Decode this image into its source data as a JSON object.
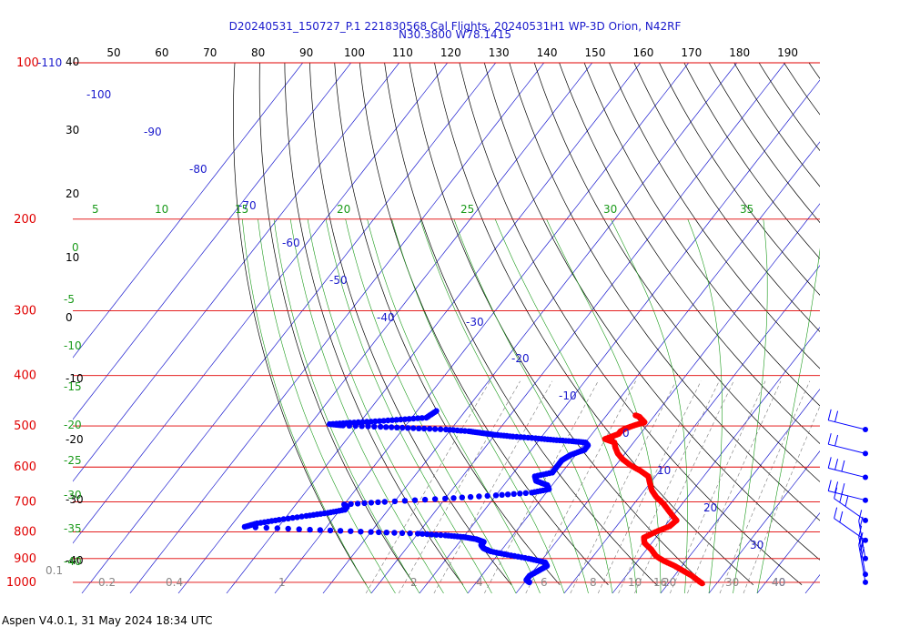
{
  "header": {
    "title_line1": "D20240531_150727_P.1 221830568 Cal Flights, 20240531H1 WP-3D Orion, N42RF",
    "title_line2": "N30.3800 W78.1415"
  },
  "footer": {
    "software": "Aspen V4.0.1, 31 May 2024  18:34 UTC"
  },
  "chart_data": {
    "type": "scatter",
    "title": "D20240531_150727_P.1 221830568 Cal Flights, 20240531H1 WP-3D Orion, N42RF",
    "subtitle": "N30.3800 W78.1415",
    "xlabel": "",
    "ylabel": "",
    "pressure_axis": {
      "label_text": [
        "100-110",
        "200",
        "300",
        "400",
        "500",
        "600",
        "700",
        "800",
        "900",
        "1000"
      ],
      "ticks": [
        100,
        200,
        300,
        400,
        500,
        600,
        700,
        800,
        900,
        1000
      ],
      "scale": "log",
      "range": [
        100,
        1000
      ]
    },
    "top_axis": {
      "ticks": [
        50,
        60,
        70,
        80,
        90,
        100,
        110,
        120,
        130,
        140,
        150,
        160,
        170,
        180,
        190
      ]
    },
    "left_temperature_ticks": [
      "40",
      "30",
      "20",
      "10",
      "0",
      "-10",
      "-20",
      "-30",
      "-40"
    ],
    "isotherm_labels": [
      "-100",
      "-90",
      "-80",
      "-70",
      "-60",
      "-50",
      "-40",
      "-30",
      "-20",
      "-10",
      "0",
      "10",
      "20",
      "30",
      "40"
    ],
    "mixing_ratio_labels": [
      "5",
      "10",
      "15",
      "20",
      "25",
      "30",
      "35"
    ],
    "dry_adiabat_labels": [
      "0",
      "-5",
      "-10",
      "-15",
      "-20",
      "-25",
      "-30",
      "-35",
      "-40"
    ],
    "bottom_axis_labels": [
      "0.1",
      "0.2",
      "0.4",
      "1",
      "2",
      "4",
      "6",
      "8",
      "10",
      "16",
      "20",
      "30",
      "40"
    ],
    "series": [
      {
        "color": "#ff0000",
        "points": [
          {
            "p": 477,
            "t": -14
          },
          {
            "p": 480,
            "t": -13
          },
          {
            "p": 486,
            "t": -12
          },
          {
            "p": 492,
            "t": -11
          },
          {
            "p": 498,
            "t": -12.5
          },
          {
            "p": 506,
            "t": -14
          },
          {
            "p": 512,
            "t": -14.5
          },
          {
            "p": 518,
            "t": -14.5
          },
          {
            "p": 524,
            "t": -15.5
          },
          {
            "p": 530,
            "t": -16.5
          },
          {
            "p": 538,
            "t": -14
          },
          {
            "p": 550,
            "t": -13
          },
          {
            "p": 565,
            "t": -11.5
          },
          {
            "p": 580,
            "t": -9.5
          },
          {
            "p": 595,
            "t": -7
          },
          {
            "p": 610,
            "t": -4
          },
          {
            "p": 625,
            "t": -1.5
          },
          {
            "p": 645,
            "t": 0
          },
          {
            "p": 665,
            "t": 1.5
          },
          {
            "p": 685,
            "t": 3.5
          },
          {
            "p": 705,
            "t": 6
          },
          {
            "p": 725,
            "t": 8
          },
          {
            "p": 740,
            "t": 9.5
          },
          {
            "p": 760,
            "t": 11.5
          },
          {
            "p": 780,
            "t": 11
          },
          {
            "p": 800,
            "t": 9
          },
          {
            "p": 820,
            "t": 7.5
          },
          {
            "p": 840,
            "t": 8.5
          },
          {
            "p": 865,
            "t": 11
          },
          {
            "p": 890,
            "t": 13
          },
          {
            "p": 910,
            "t": 15.5
          },
          {
            "p": 930,
            "t": 18.5
          },
          {
            "p": 950,
            "t": 21
          },
          {
            "p": 970,
            "t": 23.5
          },
          {
            "p": 990,
            "t": 25.5
          },
          {
            "p": 1005,
            "t": 27
          }
        ]
      },
      {
        "color": "#0000ff",
        "points": [
          {
            "p": 468,
            "t": -56
          },
          {
            "p": 482,
            "t": -57
          },
          {
            "p": 486,
            "t": -62
          },
          {
            "p": 490,
            "t": -67
          },
          {
            "p": 493,
            "t": -72
          },
          {
            "p": 496,
            "t": -76
          },
          {
            "p": 499,
            "t": -73
          },
          {
            "p": 502,
            "t": -65
          },
          {
            "p": 505,
            "t": -58
          },
          {
            "p": 508,
            "t": -51
          },
          {
            "p": 512,
            "t": -46
          },
          {
            "p": 516,
            "t": -43
          },
          {
            "p": 520,
            "t": -40
          },
          {
            "p": 524,
            "t": -36
          },
          {
            "p": 528,
            "t": -31
          },
          {
            "p": 532,
            "t": -27
          },
          {
            "p": 535,
            "t": -23
          },
          {
            "p": 538,
            "t": -20
          },
          {
            "p": 545,
            "t": -19
          },
          {
            "p": 556,
            "t": -19
          },
          {
            "p": 568,
            "t": -21
          },
          {
            "p": 582,
            "t": -22
          },
          {
            "p": 600,
            "t": -22
          },
          {
            "p": 615,
            "t": -22
          },
          {
            "p": 625,
            "t": -25
          },
          {
            "p": 638,
            "t": -24
          },
          {
            "p": 650,
            "t": -21
          },
          {
            "p": 662,
            "t": -20
          },
          {
            "p": 672,
            "t": -23
          },
          {
            "p": 680,
            "t": -30
          },
          {
            "p": 690,
            "t": -40
          },
          {
            "p": 700,
            "t": -52
          },
          {
            "p": 708,
            "t": -60
          },
          {
            "p": 716,
            "t": -59
          },
          {
            "p": 725,
            "t": -59
          },
          {
            "p": 735,
            "t": -62
          },
          {
            "p": 745,
            "t": -66
          },
          {
            "p": 758,
            "t": -71
          },
          {
            "p": 770,
            "t": -75
          },
          {
            "p": 782,
            "t": -77
          },
          {
            "p": 792,
            "t": -63
          },
          {
            "p": 800,
            "t": -50
          },
          {
            "p": 806,
            "t": -40
          },
          {
            "p": 812,
            "t": -34
          },
          {
            "p": 818,
            "t": -30
          },
          {
            "p": 826,
            "t": -27
          },
          {
            "p": 836,
            "t": -25
          },
          {
            "p": 848,
            "t": -25
          },
          {
            "p": 860,
            "t": -24
          },
          {
            "p": 872,
            "t": -22
          },
          {
            "p": 885,
            "t": -18
          },
          {
            "p": 900,
            "t": -13
          },
          {
            "p": 915,
            "t": -9
          },
          {
            "p": 930,
            "t": -8
          },
          {
            "p": 950,
            "t": -9
          },
          {
            "p": 970,
            "t": -10
          },
          {
            "p": 990,
            "t": -10
          },
          {
            "p": 1000,
            "t": -9
          }
        ]
      }
    ],
    "wind_barbs": [
      {
        "p": 508,
        "speed_kt": 20
      },
      {
        "p": 565,
        "speed_kt": 20
      },
      {
        "p": 628,
        "speed_kt": 25
      },
      {
        "p": 695,
        "speed_kt": 25
      },
      {
        "p": 760,
        "speed_kt": 25
      },
      {
        "p": 830,
        "speed_kt": 15
      },
      {
        "p": 900,
        "speed_kt": 15
      },
      {
        "p": 965,
        "speed_kt": 25
      },
      {
        "p": 1000,
        "speed_kt": 25
      }
    ],
    "grid": true,
    "legend": "none"
  }
}
